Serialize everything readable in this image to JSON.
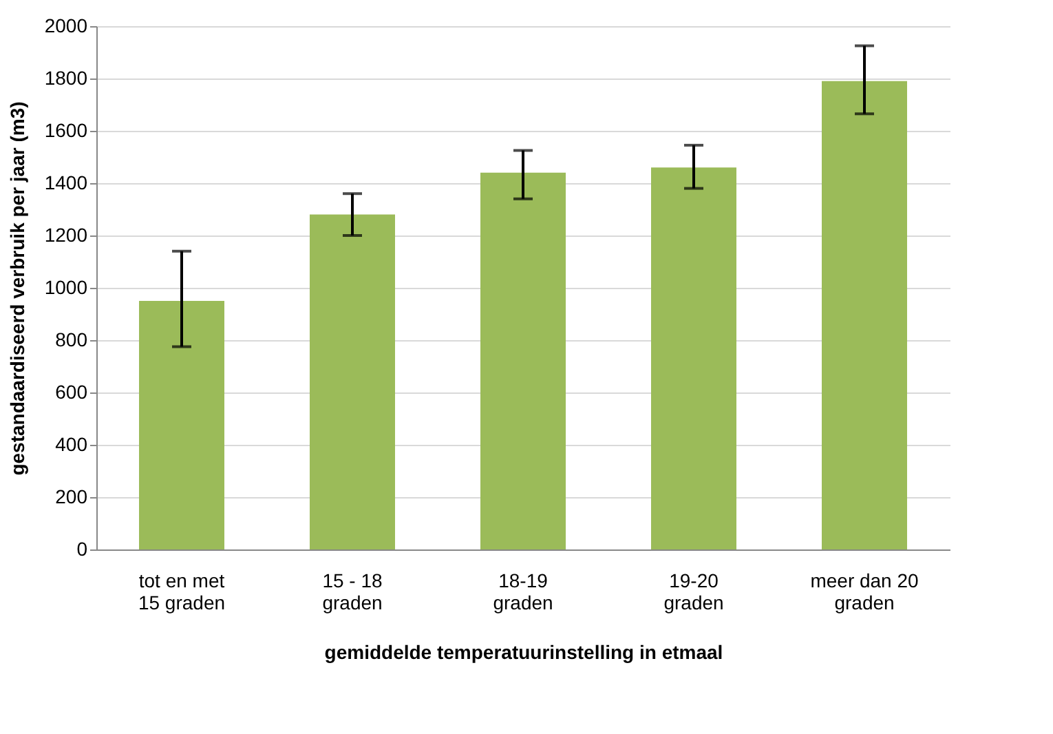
{
  "chart_data": {
    "type": "bar",
    "xlabel": "gemiddelde temperatuurinstelling  in etmaal",
    "ylabel": "gestandaardiseerd verbruik per jaar (m3)",
    "categories": [
      "tot en met\n15 graden",
      "15 - 18\ngraden",
      "18-19\ngraden",
      "19-20\ngraden",
      "meer dan 20\ngraden"
    ],
    "values": [
      950,
      1280,
      1440,
      1460,
      1790
    ],
    "errors": [
      [
        775,
        1140
      ],
      [
        1200,
        1360
      ],
      [
        1340,
        1525
      ],
      [
        1380,
        1545
      ],
      [
        1665,
        1925
      ]
    ],
    "color": "#9bbb59",
    "ylim": [
      0,
      2000
    ],
    "yticks": [
      0,
      200,
      400,
      600,
      800,
      1000,
      1200,
      1400,
      1600,
      1800,
      2000
    ],
    "grid": "y"
  }
}
